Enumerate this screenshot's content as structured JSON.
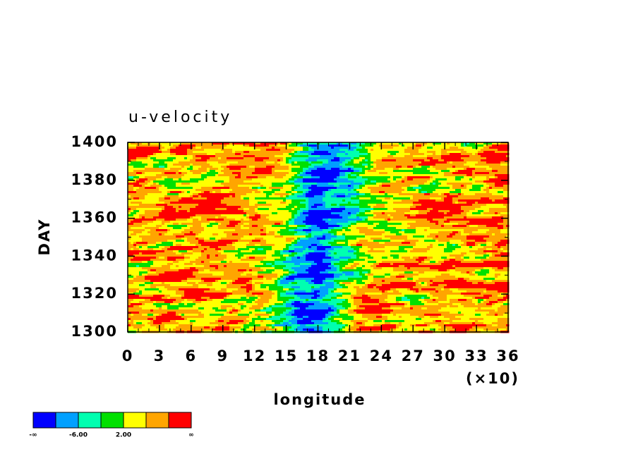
{
  "chart_data": {
    "type": "hovmoller",
    "title": "u-velocity",
    "x_label": "longitude",
    "y_label": "DAY",
    "x_multiplier": "(×10)",
    "xlim": [
      0,
      36
    ],
    "xticks": [
      0,
      3,
      6,
      9,
      12,
      15,
      18,
      21,
      24,
      27,
      30,
      33,
      36
    ],
    "ylim": [
      1300,
      1400
    ],
    "yticks": [
      1300,
      1320,
      1340,
      1360,
      1380,
      1400
    ],
    "colorbar": {
      "colors": [
        "#0000ff",
        "#00a0ff",
        "#00ffb0",
        "#00e000",
        "#ffff00",
        "#ffa500",
        "#ff0000"
      ],
      "boundary_labels": [
        "-∞",
        null,
        "-6.00",
        null,
        "2.00",
        null,
        null,
        "∞"
      ]
    }
  }
}
